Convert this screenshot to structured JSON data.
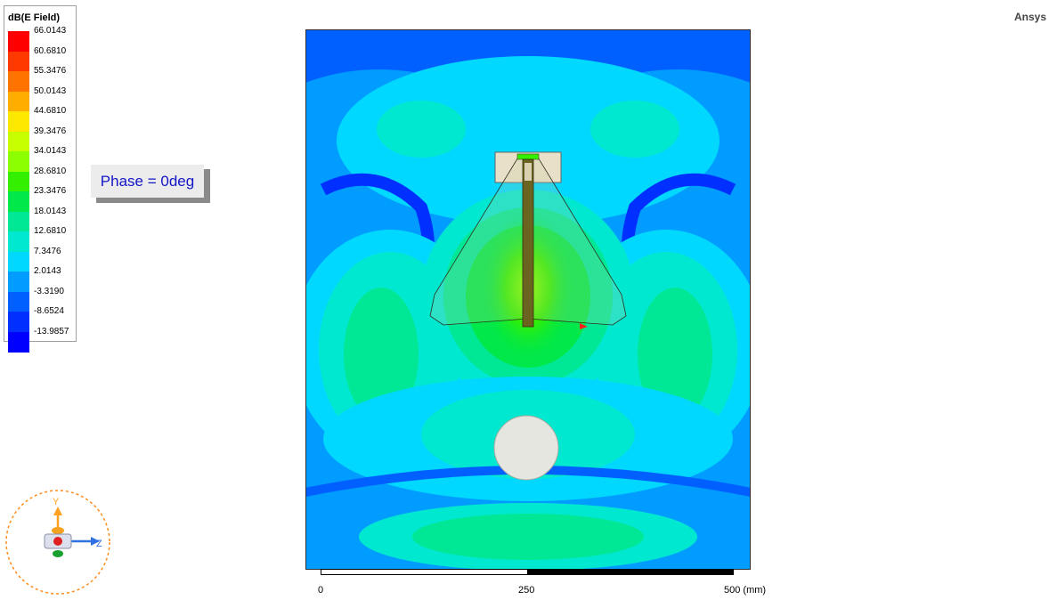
{
  "brand": "Ansys",
  "legend": {
    "title": "dB(E Field)",
    "entries": [
      {
        "label": "66.0143",
        "color": "#ff0000"
      },
      {
        "label": "60.6810",
        "color": "#ff3a00"
      },
      {
        "label": "55.3476",
        "color": "#ff7400"
      },
      {
        "label": "50.0143",
        "color": "#ffae00"
      },
      {
        "label": "44.6810",
        "color": "#ffe800"
      },
      {
        "label": "39.3476",
        "color": "#c8ff00"
      },
      {
        "label": "34.0143",
        "color": "#8cff00"
      },
      {
        "label": "28.6810",
        "color": "#34f000"
      },
      {
        "label": "23.3476",
        "color": "#00e84a"
      },
      {
        "label": "18.0143",
        "color": "#00e896"
      },
      {
        "label": "12.6810",
        "color": "#00e8d0"
      },
      {
        "label": "7.3476",
        "color": "#00d8ff"
      },
      {
        "label": "2.0143",
        "color": "#009cff"
      },
      {
        "label": "-3.3190",
        "color": "#0060ff"
      },
      {
        "label": "-8.6524",
        "color": "#0030ff"
      },
      {
        "label": "-13.9857",
        "color": "#0000ff"
      }
    ]
  },
  "phase_label": "Phase = 0deg",
  "scale_bar": {
    "ticks": [
      "0",
      "250",
      "500 (mm)"
    ]
  },
  "axes": {
    "y": "Y",
    "z": "Z"
  }
}
